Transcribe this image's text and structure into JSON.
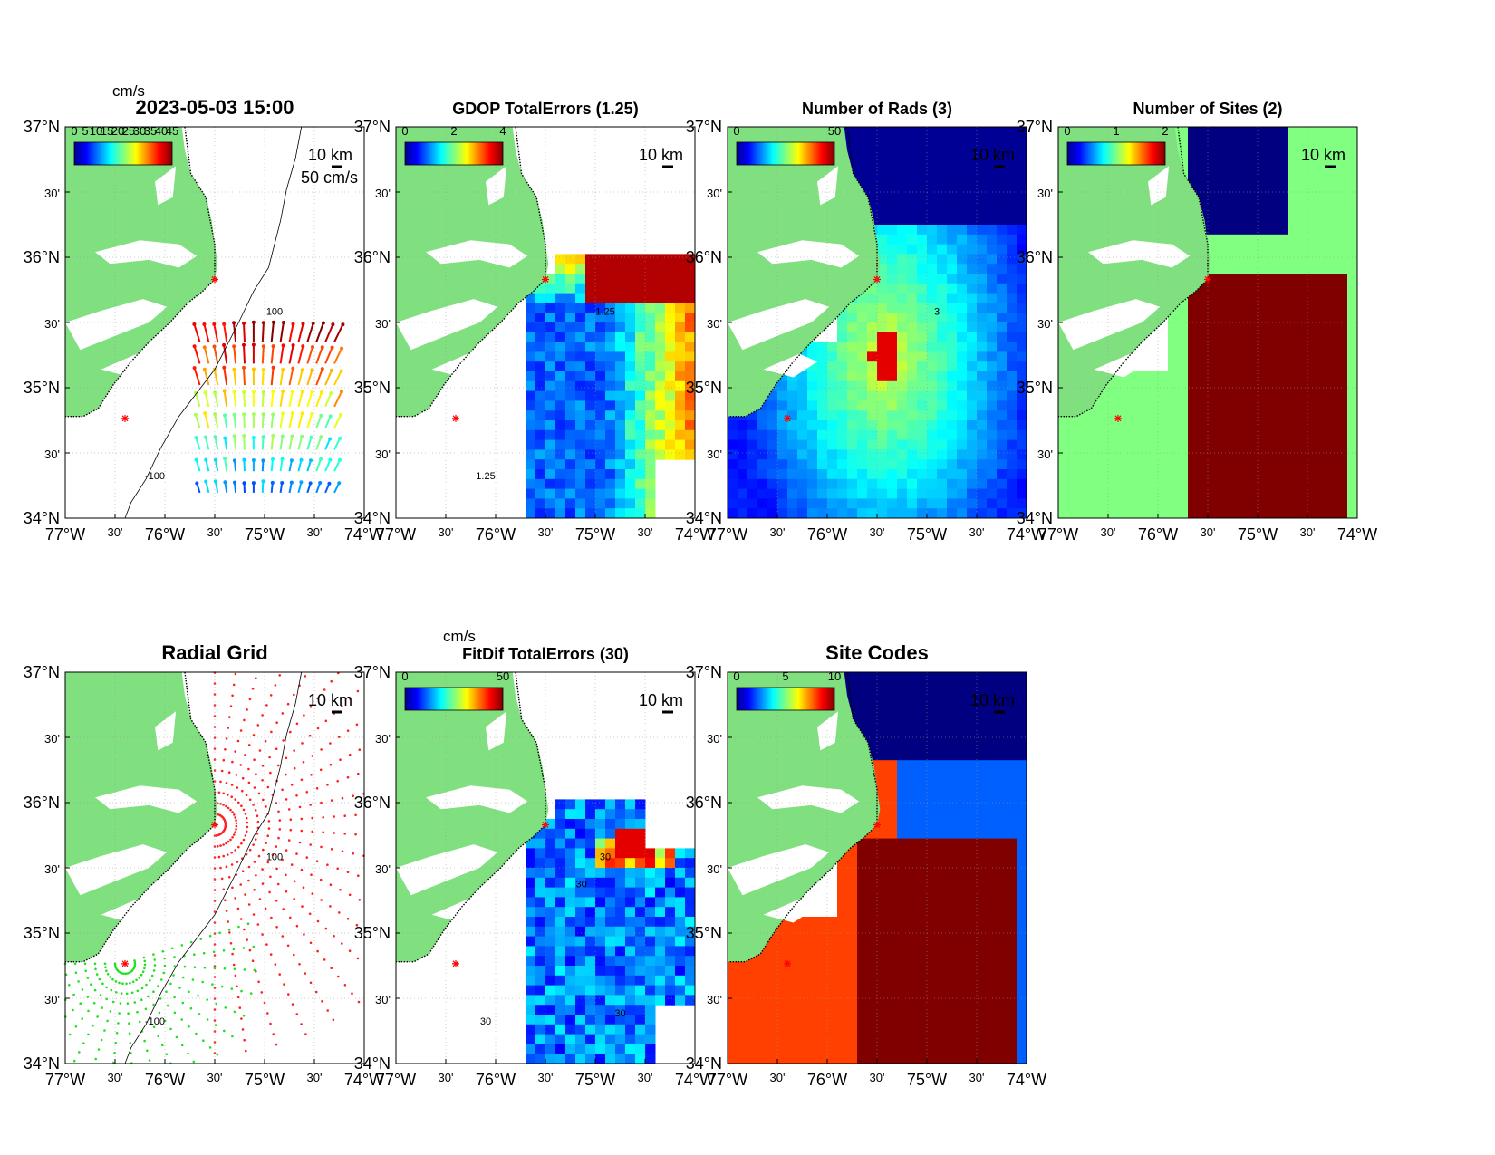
{
  "figure": {
    "panels": [
      {
        "id": "p1",
        "title": "2023-05-03 15:00",
        "cbar_unit": "cm/s",
        "cbar_ticks": [
          "0",
          "5",
          "10",
          "15",
          "20",
          "25",
          "30",
          "35",
          "40",
          "45"
        ],
        "scale_vec": "50 cm/s",
        "scale_km": "10 km",
        "mode": "vectors",
        "contour_labels": [
          "100",
          "-100"
        ]
      },
      {
        "id": "p2",
        "title": "GDOP TotalErrors (1.25)",
        "cbar_unit": "",
        "cbar_ticks": [
          "0",
          "2",
          "4"
        ],
        "scale_km": "10 km",
        "mode": "field",
        "contour_labels": [
          "1.25",
          "1.25"
        ]
      },
      {
        "id": "p3",
        "title": "Number of Rads (3)",
        "cbar_unit": "",
        "cbar_ticks": [
          "0",
          "50"
        ],
        "scale_km": "10 km",
        "mode": "rads",
        "contour_labels": [
          "3"
        ]
      },
      {
        "id": "p4",
        "title": "Number of Sites (2)",
        "cbar_unit": "",
        "cbar_ticks": [
          "0",
          "1",
          "2"
        ],
        "scale_km": "10 km",
        "mode": "sites",
        "contour_labels": []
      },
      {
        "id": "p5",
        "title": "Radial Grid",
        "cbar_unit": "",
        "cbar_ticks": [],
        "scale_km": "10 km",
        "mode": "grid",
        "contour_labels": [
          "100",
          "-100"
        ]
      },
      {
        "id": "p6",
        "title": "FitDif TotalErrors (30)",
        "cbar_unit": "cm/s",
        "cbar_ticks": [
          "0",
          "50"
        ],
        "scale_km": "10 km",
        "mode": "fitdif",
        "contour_labels": [
          "30",
          "30",
          "30",
          "30"
        ]
      },
      {
        "id": "p7",
        "title": "Site Codes",
        "cbar_unit": "",
        "cbar_ticks": [
          "0",
          "5",
          "10"
        ],
        "scale_km": "10 km",
        "mode": "codes",
        "contour_labels": []
      }
    ],
    "lat_ticks": [
      "37°N",
      "30'",
      "36°N",
      "30'",
      "35°N",
      "30'",
      "34°N"
    ],
    "lon_ticks": [
      "77°W",
      "30'",
      "76°W",
      "30'",
      "75°W",
      "30'",
      "74°W"
    ],
    "colors": {
      "land": "#80e080",
      "water": "#ffffff",
      "site_marker": "#ff0000",
      "dark_red": "#800000",
      "navy": "#000080"
    }
  }
}
